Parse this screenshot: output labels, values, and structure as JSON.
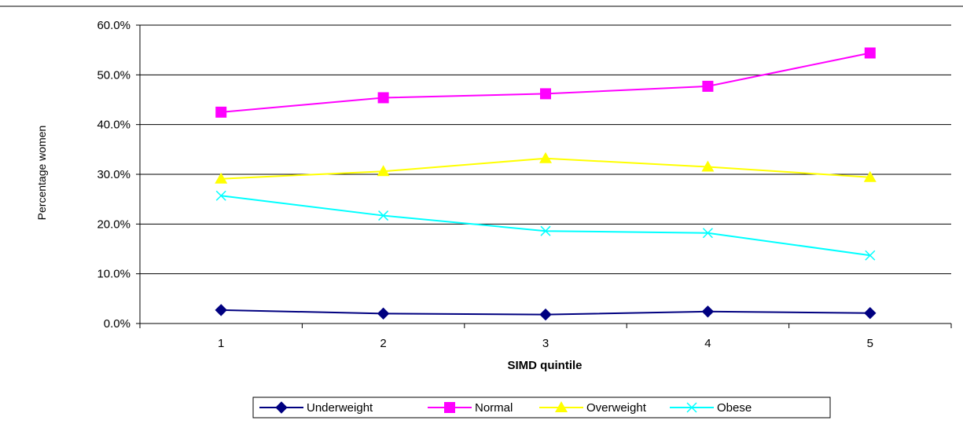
{
  "chart_data": {
    "type": "line",
    "title": "",
    "xlabel": "SIMD quintile",
    "ylabel": "Percentage women",
    "categories": [
      "1",
      "2",
      "3",
      "4",
      "5"
    ],
    "ylim": [
      0,
      60
    ],
    "yticks": [
      "0.0%",
      "10.0%",
      "20.0%",
      "30.0%",
      "40.0%",
      "50.0%",
      "60.0%"
    ],
    "grid": "horizontal",
    "legend_position": "bottom",
    "series": [
      {
        "name": "Underweight",
        "color": "#000080",
        "marker": "diamond",
        "values": [
          2.7,
          2.0,
          1.8,
          2.4,
          2.1
        ]
      },
      {
        "name": "Normal",
        "color": "#FF00FF",
        "marker": "square",
        "values": [
          42.5,
          45.4,
          46.2,
          47.7,
          54.4
        ]
      },
      {
        "name": "Overweight",
        "color": "#FFFF00",
        "marker": "triangle",
        "values": [
          29.1,
          30.6,
          33.2,
          31.5,
          29.4
        ]
      },
      {
        "name": "Obese",
        "color": "#00FFFF",
        "marker": "x",
        "values": [
          25.7,
          21.7,
          18.6,
          18.2,
          13.7
        ]
      }
    ]
  }
}
